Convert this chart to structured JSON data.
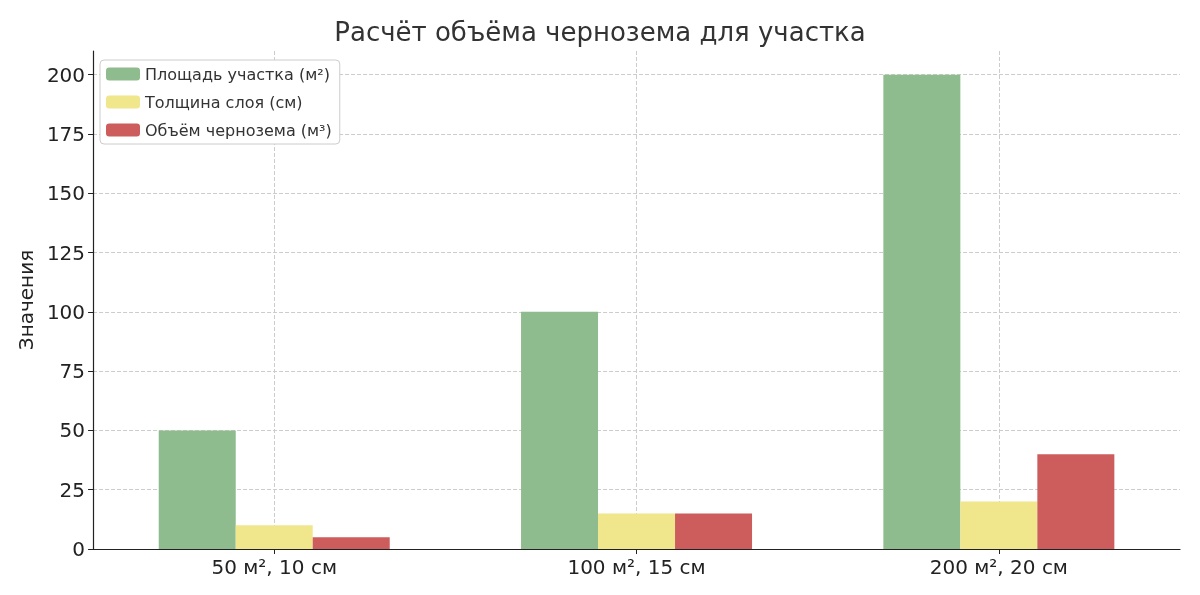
{
  "chart_data": {
    "type": "bar",
    "title": "Расчёт объёма чернозема для участка",
    "ylabel": "Значения",
    "categories": [
      "50 м², 10 см",
      "100 м², 15 см",
      "200 м², 20 см"
    ],
    "series": [
      {
        "name": "Площадь участка (м²)",
        "color": "#8fbc8f",
        "values": [
          50,
          100,
          200
        ]
      },
      {
        "name": "Толщина слоя (см)",
        "color": "#f0e68c",
        "values": [
          10,
          15,
          20
        ]
      },
      {
        "name": "Объём чернозема (м³)",
        "color": "#cd5c5c",
        "values": [
          5,
          15,
          40
        ]
      }
    ],
    "ylim": [
      0,
      210
    ],
    "yticks": [
      0,
      25,
      50,
      75,
      100,
      125,
      150,
      175,
      200
    ],
    "grid": true,
    "legend": "top left"
  }
}
